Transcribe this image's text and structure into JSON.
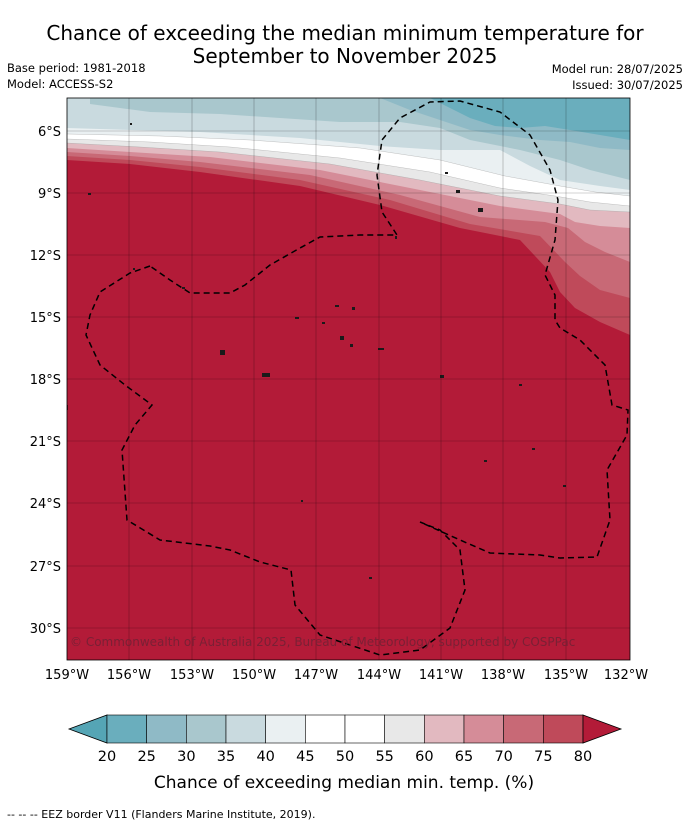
{
  "title_line1": "Chance of exceeding the median minimum temperature for",
  "title_line2": "September to November 2025",
  "base_period": "Base period: 1981-2018",
  "model": "Model: ACCESS-S2",
  "model_run": "Model run: 28/07/2025",
  "issued": "Issued: 30/07/2025",
  "lat_labels": [
    "6°S",
    "9°S",
    "12°S",
    "15°S",
    "18°S",
    "21°S",
    "24°S",
    "27°S",
    "30°S"
  ],
  "lon_labels": [
    "159°W",
    "156°W",
    "153°W",
    "150°W",
    "147°W",
    "144°W",
    "141°W",
    "138°W",
    "135°W",
    "132°W"
  ],
  "copyright": "© Commonwealth of Australia 2025, Bureau of Meteorology, supported by COSPPac",
  "colorbar": {
    "tick_labels": [
      "20",
      "25",
      "30",
      "35",
      "40",
      "45",
      "50",
      "55",
      "60",
      "65",
      "70",
      "75",
      "80"
    ],
    "title": "Chance of exceeding median min. temp. (%)",
    "under_color": "#55a5b5",
    "colors": [
      "#6aaebd",
      "#8fbac6",
      "#a9c7cd",
      "#c9dadf",
      "#eaf0f2",
      "#ffffff",
      "#ffffff",
      "#e8e8e8",
      "#e2b9c0",
      "#d58c98",
      "#c86976",
      "#bf4a5a"
    ],
    "over_color": "#b31b38"
  },
  "legend_text": "--  --  -- EEZ border V11 (Flanders Marine Institute, 2019).",
  "map_colors": {
    "high": "#b31b38",
    "low_dark": "#6aaebd",
    "low_mid": "#a9c7cd",
    "low_light": "#c9dadf"
  }
}
